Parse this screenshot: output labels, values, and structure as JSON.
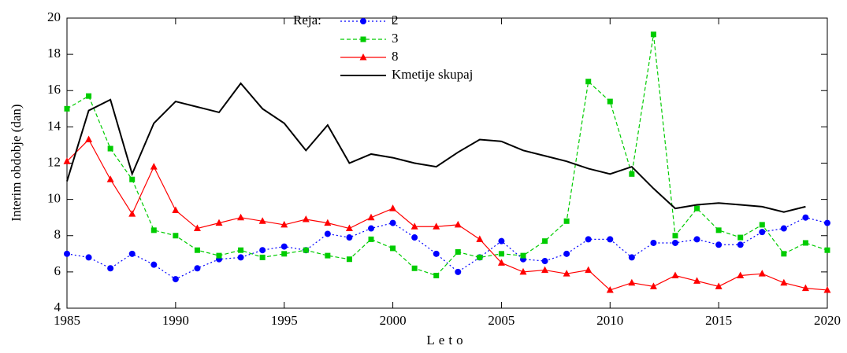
{
  "chart_data": {
    "type": "line",
    "xlabel": "Leto",
    "ylabel": "Interim obdobje (dan)",
    "legend_title": "Reja:",
    "legend": "top",
    "x": [
      1985,
      1986,
      1987,
      1988,
      1989,
      1990,
      1991,
      1992,
      1993,
      1994,
      1995,
      1996,
      1997,
      1998,
      1999,
      2000,
      2001,
      2002,
      2003,
      2004,
      2005,
      2006,
      2007,
      2008,
      2009,
      2010,
      2011,
      2012,
      2013,
      2014,
      2015,
      2016,
      2017,
      2018,
      2019,
      2020
    ],
    "xlim": [
      1985,
      2020
    ],
    "xticks": [
      1985,
      1990,
      1995,
      2000,
      2005,
      2010,
      2015,
      2020
    ],
    "ylim": [
      4,
      20
    ],
    "yticks": [
      4,
      6,
      8,
      10,
      12,
      14,
      16,
      18,
      20
    ],
    "series": [
      {
        "name": "2",
        "color": "#0000ff",
        "marker": "circle",
        "linestyle": "dotted",
        "values": [
          7.0,
          6.8,
          6.2,
          7.0,
          6.4,
          5.6,
          6.2,
          6.7,
          6.8,
          7.2,
          7.4,
          7.2,
          8.1,
          7.9,
          8.4,
          8.7,
          7.9,
          7.0,
          6.0,
          6.8,
          7.7,
          6.7,
          6.6,
          7.0,
          7.8,
          7.8,
          6.8,
          7.6,
          7.6,
          7.8,
          7.5,
          7.5,
          8.2,
          8.4,
          9.0,
          8.7
        ]
      },
      {
        "name": "3",
        "color": "#00cc00",
        "marker": "square",
        "linestyle": "dashed",
        "values": [
          15.0,
          15.7,
          12.8,
          11.1,
          8.3,
          8.0,
          7.2,
          6.9,
          7.2,
          6.8,
          7.0,
          7.2,
          6.9,
          6.7,
          7.8,
          7.3,
          6.2,
          5.8,
          7.1,
          6.8,
          7.0,
          6.9,
          7.7,
          8.8,
          16.5,
          15.4,
          11.4,
          19.1,
          8.0,
          9.5,
          8.3,
          7.9,
          8.6,
          7.0,
          7.6,
          7.2
        ]
      },
      {
        "name": "8",
        "color": "#ff0000",
        "marker": "triangle",
        "linestyle": "solid",
        "values": [
          12.1,
          13.3,
          11.1,
          9.2,
          11.8,
          9.4,
          8.4,
          8.7,
          9.0,
          8.8,
          8.6,
          8.9,
          8.7,
          8.4,
          9.0,
          9.5,
          8.5,
          8.5,
          8.6,
          7.8,
          6.5,
          6.0,
          6.1,
          5.9,
          6.1,
          5.0,
          5.4,
          5.2,
          5.8,
          5.5,
          5.2,
          5.8,
          5.9,
          5.4,
          5.1,
          5.0
        ]
      },
      {
        "name": "Kmetije skupaj",
        "color": "#000000",
        "marker": null,
        "linestyle": "solid",
        "values": [
          11.0,
          14.9,
          15.5,
          11.4,
          14.2,
          15.4,
          15.1,
          14.8,
          16.4,
          15.0,
          14.2,
          12.7,
          14.1,
          12.0,
          12.5,
          12.3,
          12.0,
          11.8,
          12.6,
          13.3,
          13.2,
          12.7,
          12.4,
          12.1,
          11.7,
          11.4,
          11.8,
          10.6,
          9.5,
          9.7,
          9.8,
          9.7,
          9.6,
          9.3,
          9.6,
          null
        ]
      }
    ]
  }
}
